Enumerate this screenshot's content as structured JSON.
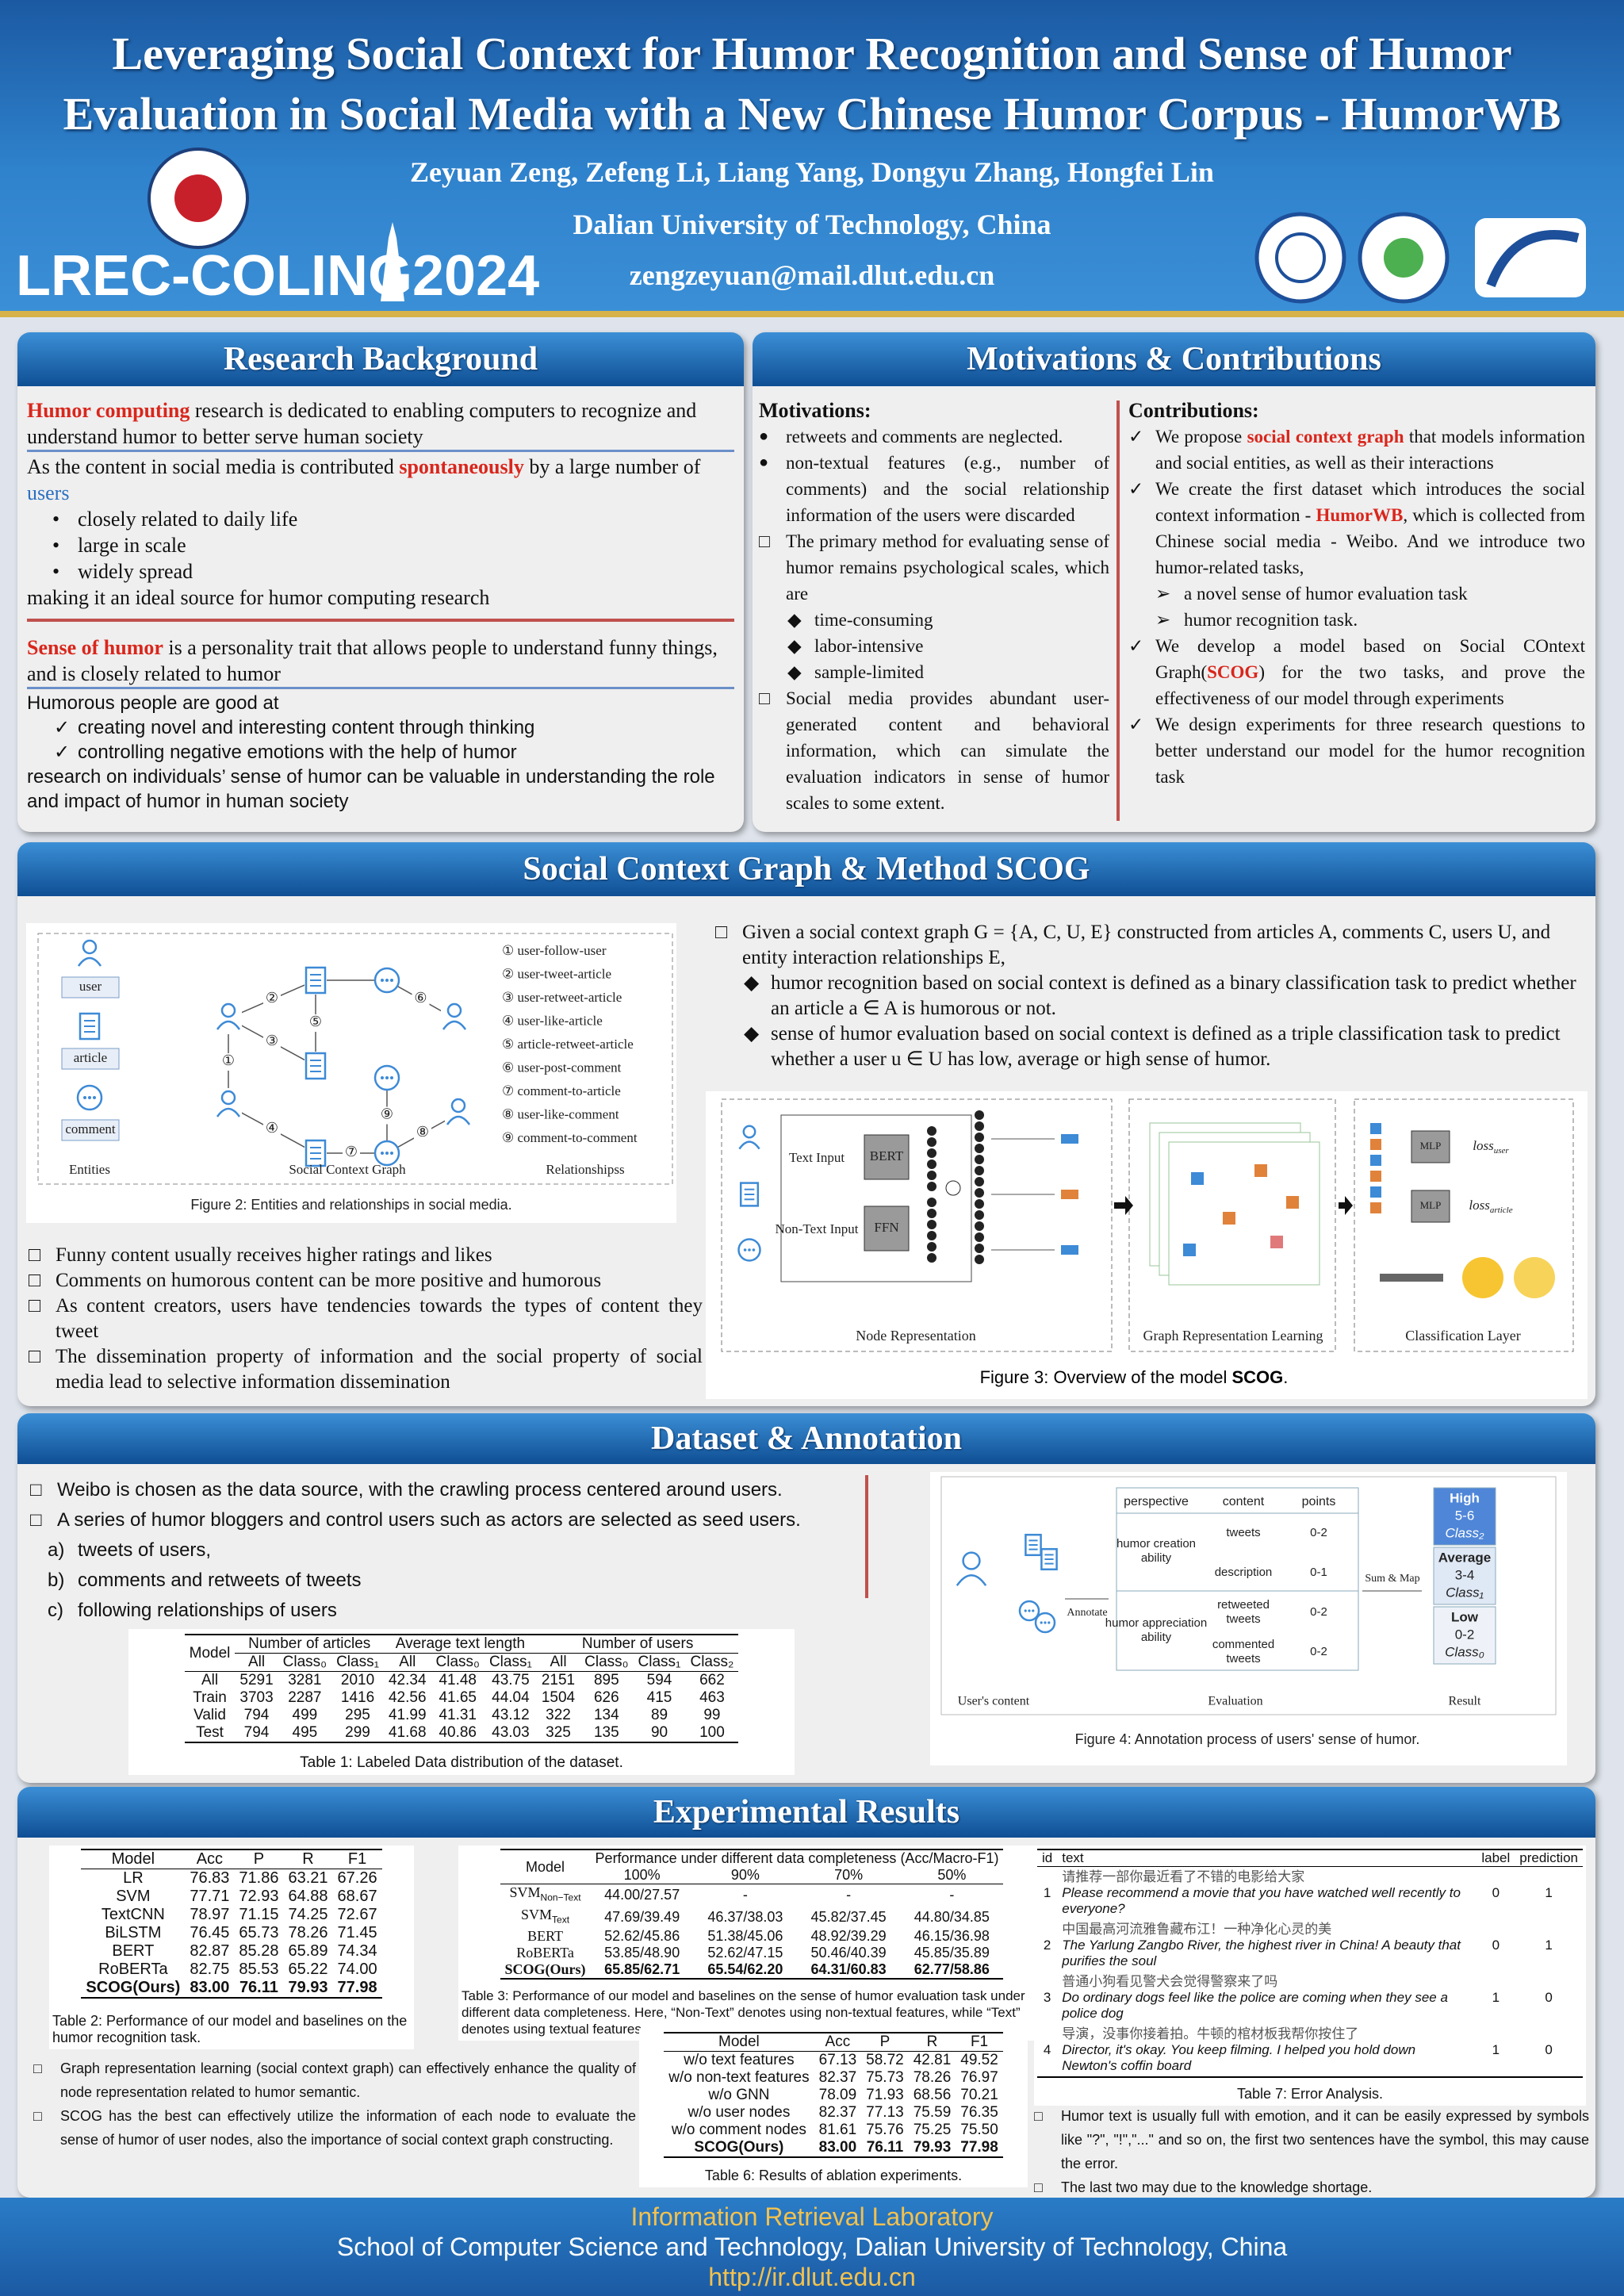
{
  "header": {
    "title_lines": [
      "Leveraging Social Context for Humor Recognition and Sense of Humor",
      "Evaluation in Social Media with a New Chinese Humor Corpus - HumorWB"
    ],
    "authors": "Zeyuan Zeng, Zefeng Li, Liang Yang, Dongyu Zhang, Hongfei Lin",
    "affiliation": "Dalian University of Technology, China",
    "email": "zengzeyuan@mail.dlut.edu.cn",
    "conference": "LREC-COLING",
    "year": "2024"
  },
  "background": {
    "heading": "Research Background",
    "p1": [
      "Humor computing",
      " research is dedicated to enabling computers to recognize and understand humor to better serve human society"
    ],
    "p2": [
      "As the content in social media is contributed ",
      "spontaneously",
      " by a large number of ",
      "users"
    ],
    "bullets": [
      "closely related to daily life",
      "large in scale",
      "widely spread"
    ],
    "p3": "making it an ideal source for humor computing research",
    "p4": [
      "Sense of humor",
      " is a personality trait that allows people to understand funny things, and is closely related to humor"
    ],
    "p5": "Humorous people are good at",
    "checks": [
      "creating novel and interesting content through thinking",
      "controlling negative emotions with the help of humor"
    ],
    "p6": "research on individuals’ sense of humor can be valuable in understanding the role and impact of humor in human society"
  },
  "motivations": {
    "heading": "Motivations & Contributions",
    "motivations_title": "Motivations:",
    "dots": [
      "retweets and comments are neglected.",
      "non-textual features (e.g., number of comments) and the social relationship information of the users were discarded"
    ],
    "box1": "The primary method for evaluating sense of humor remains psychological scales, which are",
    "diamonds": [
      "time-consuming",
      "labor-intensive",
      "sample-limited"
    ],
    "box2": "Social media provides abundant user-generated content and behavioral information, which can simulate the evaluation indicators in sense of humor scales to some extent.",
    "contributions_title": "Contributions:",
    "c1": [
      "We propose ",
      "social context graph",
      " that models information and social entities, as well as their interactions"
    ],
    "c2": [
      "We create the first dataset which introduces the social context information - ",
      "HumorWB",
      ", which is collected from Chinese social media - Weibo. And we introduce two humor-related tasks,"
    ],
    "tasks": [
      "a novel sense of humor evaluation task",
      "humor recognition task."
    ],
    "c3": [
      "We develop a model based on Social COntext Graph(",
      "SCOG",
      ") for the two tasks, and prove the effectiveness of our model through experiments"
    ],
    "c4": "We design experiments for three research questions to better understand our model for the humor recognition task"
  },
  "method": {
    "heading": "Social Context Graph & Method SCOG",
    "figure2": {
      "entities": [
        "user",
        "article",
        "comment"
      ],
      "edge_markers": [
        "①",
        "②",
        "③",
        "④",
        "⑤",
        "⑥",
        "⑦",
        "⑧",
        "⑨"
      ],
      "relations": [
        "① user-follow-user",
        "② user-tweet-article",
        "③ user-retweet-article",
        "④ user-like-article",
        "⑤ article-retweet-article",
        "⑥ user-post-comment",
        "⑦ comment-to-article",
        "⑧ user-like-comment",
        "⑨ comment-to-comment"
      ],
      "labels": [
        "Entities",
        "Social Context Graph",
        "Relationshipss"
      ],
      "caption": "Figure 2: Entities and relationships in social media."
    },
    "left_points": [
      "Funny content usually receives higher ratings and likes",
      "Comments on humorous content can be more positive and humorous",
      "As content creators, users have tendencies towards the types of content they tweet",
      "The dissemination property of information and the social property of social media lead to selective information dissemination"
    ],
    "definition": "Given a social context graph G = {A, C, U, E} constructed from articles A, comments C, users U, and entity interaction relationships E,",
    "tasks": [
      "humor recognition based on social context is defined as a binary classification task to predict whether an article a ∈ A is humorous or not.",
      "sense of humor evaluation based on social context is defined as a triple classification task to predict whether a user u ∈ U has low, average or high sense of humor."
    ],
    "figure3": {
      "text_input": "Text Input",
      "bert": "BERT",
      "non_text_input": "Non-Text Input",
      "ffn": "FFN",
      "mlp": "MLP",
      "loss": "loss",
      "loss_subs": [
        "user",
        "article"
      ],
      "labels": [
        "Node Representation",
        "Graph Representation Learning",
        "Classification Layer"
      ],
      "caption": [
        "Figure 3: Overview of the model ",
        "SCOG",
        "."
      ]
    }
  },
  "dataset": {
    "heading": "Dataset & Annotation",
    "points": [
      "Weibo is chosen as the data source, with the crawling process centered around users.",
      "A series of humor bloggers and control users such as actors are selected as seed users."
    ],
    "relationships": [
      "tweets of users,",
      "comments and retweets of tweets",
      "following relationships of users"
    ],
    "table1": {
      "groups": [
        "Model",
        "Number of articles",
        "Average text length",
        "Number of users"
      ],
      "columns": [
        "All",
        "Class₀",
        "Class₁",
        "All",
        "Class₀",
        "Class₁",
        "All",
        "Class₀",
        "Class₁",
        "Class₂"
      ],
      "rows": [
        {
          "model": "All",
          "values": [
            "5291",
            "3281",
            "2010",
            "42.34",
            "41.48",
            "43.75",
            "2151",
            "895",
            "594",
            "662"
          ]
        },
        {
          "model": "Train",
          "values": [
            "3703",
            "2287",
            "1416",
            "42.56",
            "41.65",
            "44.04",
            "1504",
            "626",
            "415",
            "463"
          ]
        },
        {
          "model": "Valid",
          "values": [
            "794",
            "499",
            "295",
            "41.99",
            "41.31",
            "43.12",
            "322",
            "134",
            "89",
            "99"
          ]
        },
        {
          "model": "Test",
          "values": [
            "794",
            "495",
            "299",
            "41.68",
            "40.86",
            "43.03",
            "325",
            "135",
            "90",
            "100"
          ]
        }
      ],
      "caption": "Table 1: Labeled Data distribution of the dataset."
    },
    "figure4": {
      "headers": [
        "perspective",
        "content",
        "points"
      ],
      "perspectives": [
        "humor creation ability",
        "humor appreciation ability"
      ],
      "contents": [
        {
          "content": "tweets",
          "points": "0-2"
        },
        {
          "content": "description",
          "points": "0-1"
        },
        {
          "content": "retweeted tweets",
          "points": "0-2"
        },
        {
          "content": "commented tweets",
          "points": "0-2"
        }
      ],
      "annotate": "Annotate",
      "sum_map": "Sum & Map",
      "results": [
        {
          "level": "High",
          "range": "5-6",
          "class": "Class₂"
        },
        {
          "level": "Average",
          "range": "3-4",
          "class": "Class₁"
        },
        {
          "level": "Low",
          "range": "0-2",
          "class": "Class₀"
        }
      ],
      "labels": [
        "User's content",
        "Evaluation",
        "Result"
      ],
      "caption": "Figure 4: Annotation process of users' sense of humor."
    }
  },
  "results": {
    "heading": "Experimental Results",
    "table2": {
      "columns": [
        "Model",
        "Acc",
        "P",
        "R",
        "F1"
      ],
      "rows": [
        {
          "model": "LR",
          "values": [
            "76.83",
            "71.86",
            "63.21",
            "67.26"
          ]
        },
        {
          "model": "SVM",
          "values": [
            "77.71",
            "72.93",
            "64.88",
            "68.67"
          ]
        },
        {
          "model": "TextCNN",
          "values": [
            "78.97",
            "71.15",
            "74.25",
            "72.67"
          ]
        },
        {
          "model": "BiLSTM",
          "values": [
            "76.45",
            "65.73",
            "78.26",
            "71.45"
          ]
        },
        {
          "model": "BERT",
          "values": [
            "82.87",
            "85.28",
            "65.89",
            "74.34"
          ]
        },
        {
          "model": "RoBERTa",
          "values": [
            "82.75",
            "85.53",
            "65.22",
            "74.00"
          ]
        },
        {
          "model": "SCOG(Ours)",
          "values": [
            "83.00",
            "76.11",
            "79.93",
            "77.98"
          ]
        }
      ],
      "caption": "Table 2: Performance of our model and baselines on the humor recognition task."
    },
    "table3": {
      "model_header": "Model",
      "group": "Performance under different data completeness (Acc/Macro-F1)",
      "columns": [
        "100%",
        "90%",
        "70%",
        "50%"
      ],
      "rows": [
        {
          "model": "SVM",
          "sub": "Non−Text",
          "values": [
            "44.00/27.57",
            "-",
            "-",
            "-"
          ]
        },
        {
          "model": "SVM",
          "sub": "Text",
          "values": [
            "47.69/39.49",
            "46.37/38.03",
            "45.82/37.45",
            "44.80/34.85"
          ]
        },
        {
          "model": "BERT",
          "values": [
            "52.62/45.86",
            "51.38/45.06",
            "48.92/39.29",
            "46.15/36.98"
          ]
        },
        {
          "model": "RoBERTa",
          "values": [
            "53.85/48.90",
            "52.62/47.15",
            "50.46/40.39",
            "45.85/35.89"
          ]
        },
        {
          "model": "SCOG(Ours)",
          "values": [
            "65.85/62.71",
            "65.54/62.20",
            "64.31/60.83",
            "62.77/58.86"
          ]
        }
      ],
      "caption": "Table 3: Performance of our model and baselines on the sense of humor evaluation task under different data completeness.  Here, “Non-Text” denotes using non-textual features, while “Text” denotes using textual features."
    },
    "table6": {
      "columns": [
        "Model",
        "Acc",
        "P",
        "R",
        "F1"
      ],
      "rows": [
        {
          "model": "w/o text features",
          "values": [
            "67.13",
            "58.72",
            "42.81",
            "49.52"
          ]
        },
        {
          "model": "w/o non-text features",
          "values": [
            "82.37",
            "75.73",
            "78.26",
            "76.97"
          ]
        },
        {
          "model": "w/o GNN",
          "values": [
            "78.09",
            "71.93",
            "68.56",
            "70.21"
          ]
        },
        {
          "model": "w/o user nodes",
          "values": [
            "82.37",
            "77.13",
            "75.59",
            "76.35"
          ]
        },
        {
          "model": "w/o comment nodes",
          "values": [
            "81.61",
            "75.76",
            "75.25",
            "75.50"
          ]
        },
        {
          "model": "SCOG(Ours)",
          "values": [
            "83.00",
            "76.11",
            "79.93",
            "77.98"
          ]
        }
      ],
      "caption": "Table 6: Results of ablation experiments."
    },
    "table7": {
      "columns": [
        "id",
        "text",
        "label",
        "prediction"
      ],
      "rows": [
        {
          "id": "1",
          "zh": "请推荐一部你最近看了不错的电影给大家",
          "en": "Please recommend a movie that you have watched well recently to everyone?",
          "label": "0",
          "prediction": "1"
        },
        {
          "id": "2",
          "zh": "中国最高河流雅鲁藏布江！一种净化心灵的美",
          "en": "The Yarlung Zangbo River, the highest river in China! A beauty that purifies the soul",
          "label": "0",
          "prediction": "1"
        },
        {
          "id": "3",
          "zh": "普通小狗看见警犬会觉得警察来了吗",
          "en": "Do ordinary dogs feel like the police are coming when they see a police dog",
          "label": "1",
          "prediction": "0"
        },
        {
          "id": "4",
          "zh": "导演，没事你接着拍。牛顿的棺材板我帮你按住了",
          "en": "Director, it's okay.  You keep filming.  I helped you hold down Newton's coffin board",
          "label": "1",
          "prediction": "0"
        }
      ],
      "caption": "Table 7: Error Analysis."
    },
    "left_points": [
      "Graph representation learning (social context graph) can effectively enhance the quality of node representation related to humor semantic.",
      "SCOG has the best can effectively utilize the information of each node to evaluate the sense of humor of user nodes, also the importance of social context graph constructing."
    ],
    "right_points": [
      "Humor text is usually full with emotion, and it can be easily expressed by symbols like \"?\", \"!\",\"...\" and so on, the first two sentences have the symbol, this may cause the error.",
      "The last two may due to the knowledge shortage."
    ]
  },
  "footer": {
    "lab": "Information Retrieval Laboratory",
    "school": "School of Computer Science and Technology, Dalian University of Technology, China",
    "url": "http://ir.dlut.edu.cn"
  }
}
